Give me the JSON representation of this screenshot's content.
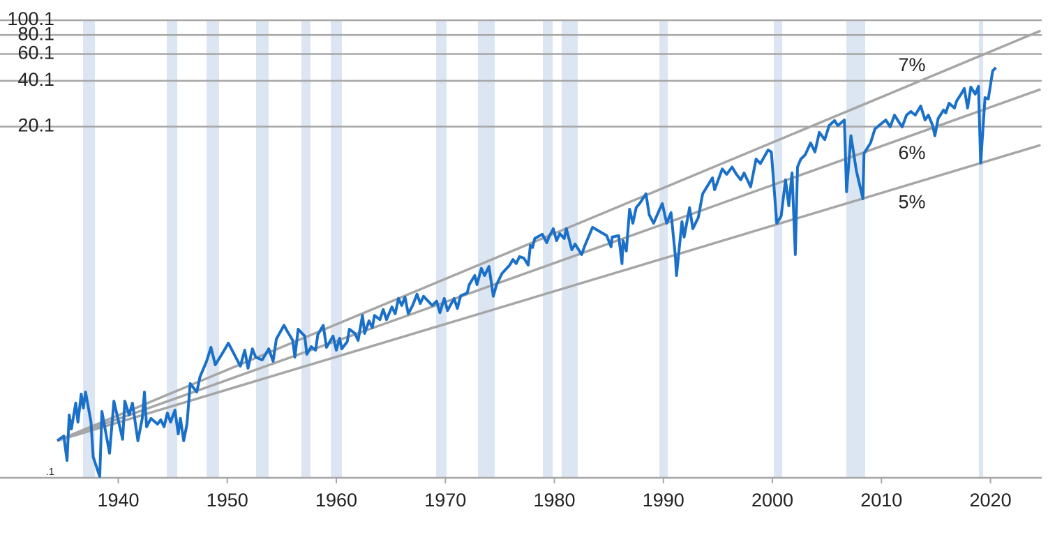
{
  "chart_data": {
    "type": "line",
    "log_scale": true,
    "grid": true,
    "color": "#1a70c8",
    "xlim": [
      1934.4,
      2024.7
    ],
    "ylim": [
      0.1,
      100.1
    ],
    "xticks": [
      1940,
      1950,
      1960,
      1970,
      1980,
      1990,
      2000,
      2010,
      2020
    ],
    "yticks": [
      {
        "value": 0.1,
        "label": ".1"
      },
      20.1,
      40.1,
      60.1,
      80.1,
      100.1
    ],
    "shade_color": "#dce6f2",
    "shaded_periods": [
      [
        1936.77,
        1937.86
      ],
      [
        1944.45,
        1945.41
      ],
      [
        1948.1,
        1949.25
      ],
      [
        1952.64,
        1953.79
      ],
      [
        1956.8,
        1957.63
      ],
      [
        1959.49,
        1960.51
      ],
      [
        1969.15,
        1970.11
      ],
      [
        1972.99,
        1974.53
      ],
      [
        1978.94,
        1979.84
      ],
      [
        1980.67,
        1982.14
      ],
      [
        1989.63,
        1990.4
      ],
      [
        2000.13,
        2000.9
      ],
      [
        2006.78,
        2008.51
      ],
      [
        2018.94,
        2019.33
      ]
    ],
    "x": [
      1934.4,
      1935.0,
      1935.3,
      1935.5,
      1935.7,
      1936.1,
      1936.3,
      1936.6,
      1936.8,
      1937.0,
      1937.5,
      1937.7,
      1938.3,
      1938.5,
      1939.2,
      1939.6,
      1940.4,
      1940.6,
      1941.0,
      1941.3,
      1941.8,
      1942.2,
      1942.4,
      1942.6,
      1943.0,
      1943.6,
      1943.9,
      1944.2,
      1944.5,
      1944.8,
      1945.2,
      1945.5,
      1945.7,
      1946.0,
      1946.3,
      1946.6,
      1947.2,
      1947.5,
      1948.1,
      1948.5,
      1948.9,
      1949.5,
      1950.1,
      1951.2,
      1951.6,
      1951.9,
      1952.3,
      1952.6,
      1953.2,
      1953.8,
      1954.2,
      1954.5,
      1955.2,
      1955.5,
      1956.0,
      1956.2,
      1956.5,
      1957.1,
      1957.3,
      1957.7,
      1958.1,
      1958.3,
      1958.8,
      1959.1,
      1959.7,
      1960.0,
      1960.3,
      1960.5,
      1961.0,
      1961.2,
      1961.7,
      1962.0,
      1962.4,
      1962.6,
      1963.0,
      1963.3,
      1963.5,
      1964.0,
      1964.3,
      1964.6,
      1965.1,
      1965.4,
      1965.7,
      1966.0,
      1966.3,
      1966.6,
      1967.0,
      1967.4,
      1967.7,
      1968.0,
      1968.3,
      1968.8,
      1969.2,
      1969.5,
      1969.9,
      1970.2,
      1970.8,
      1971.1,
      1971.4,
      1972.0,
      1972.2,
      1972.7,
      1972.9,
      1973.3,
      1973.6,
      1974.0,
      1974.4,
      1974.7,
      1975.2,
      1975.9,
      1976.2,
      1976.5,
      1976.8,
      1977.2,
      1977.6,
      1977.8,
      1978.0,
      1978.2,
      1978.9,
      1979.3,
      1979.5,
      1979.9,
      1980.2,
      1980.5,
      1980.9,
      1981.1,
      1981.6,
      1981.9,
      1982.5,
      1982.8,
      1983.5,
      1984.8,
      1985.2,
      1985.3,
      1985.9,
      1986.2,
      1986.3,
      1986.6,
      1986.9,
      1987.2,
      1987.5,
      1987.9,
      1988.4,
      1988.7,
      1989.1,
      1989.6,
      1989.9,
      1990.3,
      1990.7,
      1991.1,
      1991.2,
      1991.7,
      1991.9,
      1992.4,
      1992.7,
      1993.2,
      1993.6,
      1994.5,
      1994.7,
      1995.4,
      1995.8,
      1996.3,
      1996.7,
      1997.1,
      1997.4,
      1998.0,
      1998.5,
      1998.9,
      1999.6,
      1999.9,
      2000.4,
      2000.8,
      2001.2,
      2001.5,
      2001.8,
      2002.1,
      2002.3,
      2002.6,
      2003.0,
      2003.5,
      2003.9,
      2004.3,
      2004.8,
      2005.2,
      2005.7,
      2006.0,
      2006.6,
      2006.8,
      2007.2,
      2007.7,
      2008.3,
      2008.4,
      2009.0,
      2009.4,
      2010.4,
      2010.8,
      2011.2,
      2011.6,
      2011.9,
      2012.3,
      2012.7,
      2013.1,
      2013.6,
      2014.0,
      2014.3,
      2014.7,
      2014.9,
      2015.2,
      2015.7,
      2015.9,
      2016.2,
      2016.7,
      2016.9,
      2017.3,
      2017.6,
      2017.9,
      2018.2,
      2018.6,
      2018.9,
      2019.1,
      2019.5,
      2019.8,
      2020.2,
      2020.5
    ],
    "values": [
      0.175,
      0.188,
      0.13,
      0.258,
      0.209,
      0.309,
      0.232,
      0.354,
      0.287,
      0.365,
      0.232,
      0.137,
      0.102,
      0.272,
      0.145,
      0.318,
      0.179,
      0.318,
      0.258,
      0.309,
      0.175,
      0.245,
      0.365,
      0.216,
      0.245,
      0.225,
      0.24,
      0.216,
      0.266,
      0.232,
      0.278,
      0.194,
      0.245,
      0.175,
      0.225,
      0.415,
      0.365,
      0.46,
      0.581,
      0.717,
      0.551,
      0.646,
      0.764,
      0.54,
      0.687,
      0.523,
      0.701,
      0.619,
      0.593,
      0.701,
      0.581,
      0.813,
      1.0,
      0.914,
      0.796,
      0.619,
      0.943,
      0.849,
      0.646,
      0.724,
      0.687,
      0.867,
      1.0,
      0.717,
      0.849,
      0.687,
      0.822,
      0.701,
      0.78,
      0.943,
      0.885,
      0.796,
      1.16,
      0.885,
      1.07,
      0.964,
      1.16,
      1.09,
      1.27,
      1.09,
      1.32,
      1.19,
      1.5,
      1.35,
      1.53,
      1.19,
      1.35,
      1.6,
      1.39,
      1.55,
      1.47,
      1.35,
      1.44,
      1.21,
      1.5,
      1.25,
      1.5,
      1.29,
      1.56,
      1.63,
      1.85,
      2.12,
      1.85,
      2.36,
      2.12,
      2.43,
      1.55,
      1.85,
      2.19,
      2.48,
      2.7,
      2.54,
      2.82,
      2.76,
      2.48,
      3.34,
      3.24,
      3.71,
      3.95,
      3.48,
      3.79,
      4.3,
      3.59,
      3.99,
      3.71,
      4.3,
      3.13,
      3.41,
      2.91,
      3.34,
      4.39,
      3.87,
      3.27,
      3.79,
      3.87,
      2.54,
      3.59,
      3.07,
      5.77,
      4.67,
      5.9,
      6.41,
      7.28,
      5.31,
      4.67,
      5.65,
      6.28,
      4.67,
      5.48,
      2.82,
      2.12,
      4.78,
      3.79,
      5.9,
      4.3,
      5.09,
      7.28,
      9.27,
      7.75,
      10.6,
      9.77,
      10.9,
      9.77,
      8.99,
      9.98,
      8.09,
      12.3,
      11.5,
      14.1,
      13.7,
      4.67,
      5.2,
      8.99,
      6.08,
      9.98,
      2.91,
      10.9,
      12.3,
      13.1,
      15.7,
      13.7,
      18.4,
      16.5,
      20.4,
      22.0,
      20.4,
      22.2,
      7.52,
      17.5,
      10.3,
      6.76,
      13.4,
      15.7,
      19.4,
      22.2,
      20.0,
      23.9,
      21.5,
      20.0,
      23.9,
      25.2,
      23.9,
      27.4,
      22.2,
      23.9,
      20.4,
      17.5,
      22.7,
      25.8,
      24.7,
      28.6,
      26.6,
      29.6,
      32.8,
      35.7,
      26.6,
      36.5,
      32.8,
      36.9,
      11.6,
      31.1,
      30.5,
      46.5,
      49.0
    ],
    "series": [
      {
        "name": "7%",
        "color": "#a6a6a6",
        "x": [
          1934.4,
          2024.6
        ],
        "values": [
          0.175,
          85.5
        ]
      },
      {
        "name": "6%",
        "color": "#a6a6a6",
        "x": [
          1934.4,
          2024.6
        ],
        "values": [
          0.175,
          35.3
        ]
      },
      {
        "name": "5%",
        "color": "#a6a6a6",
        "x": [
          1934.4,
          2024.6
        ],
        "values": [
          0.175,
          15.2
        ]
      }
    ]
  }
}
